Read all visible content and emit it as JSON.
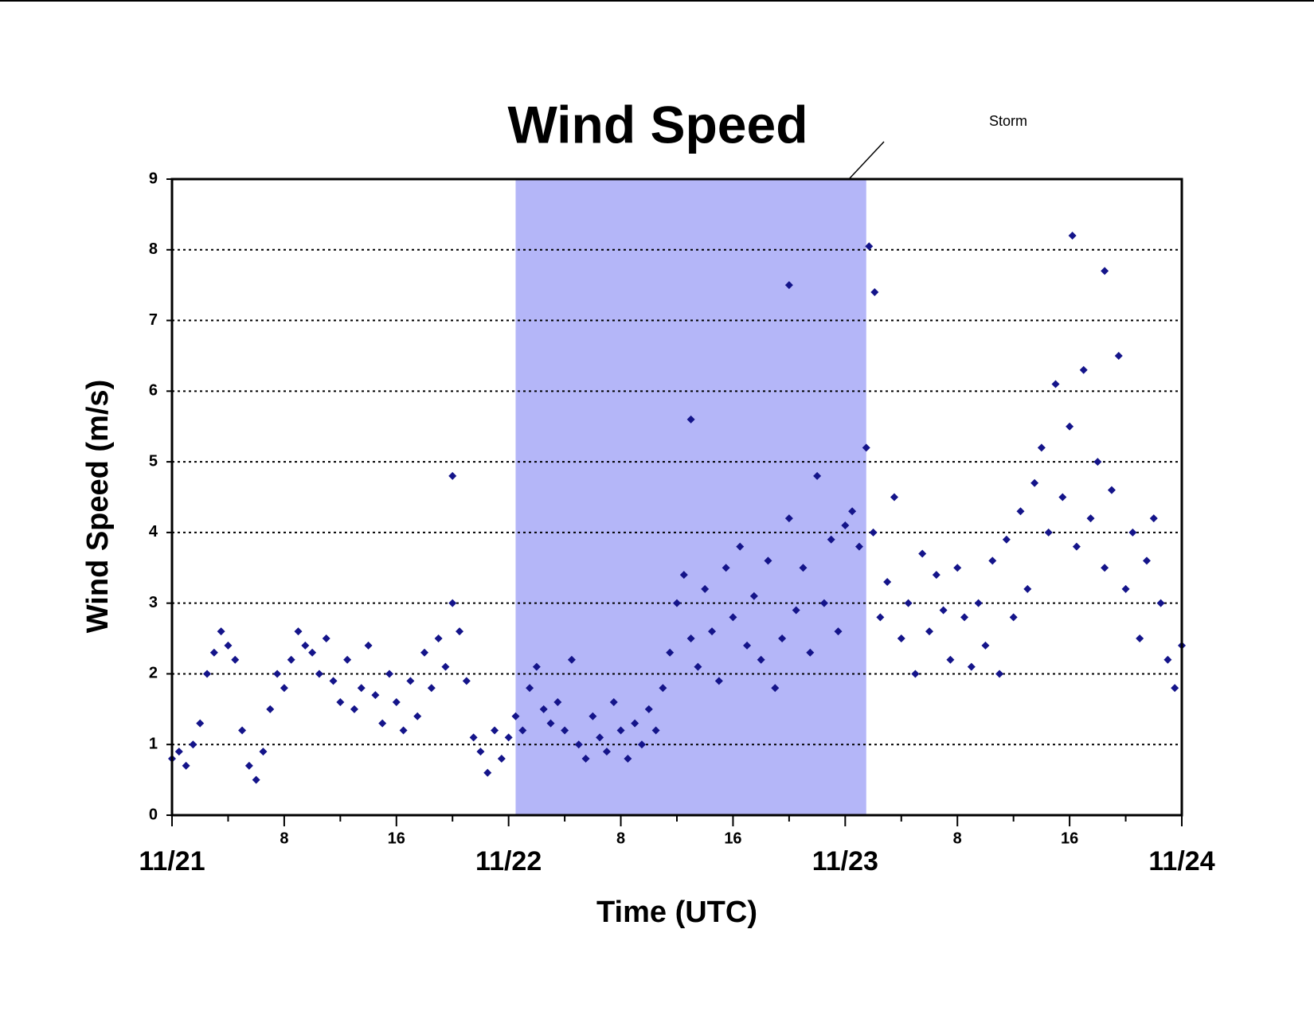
{
  "chart_data": {
    "type": "scatter",
    "title": "Wind Speed",
    "xlabel": "Time (UTC)",
    "ylabel": "Wind Speed (m/s)",
    "color": "#14148a",
    "grid": true,
    "xlim": [
      0,
      72
    ],
    "ylim": [
      0,
      9
    ],
    "yticks": [
      0,
      1,
      2,
      3,
      4,
      5,
      6,
      7,
      8,
      9
    ],
    "xticks": [
      {
        "value": 0,
        "label": "11/21"
      },
      8,
      16,
      {
        "value": 24,
        "label": "11/22"
      },
      {
        "value": 32,
        "label": "8"
      },
      {
        "value": 40,
        "label": "16"
      },
      {
        "value": 48,
        "label": "11/23"
      },
      {
        "value": 56,
        "label": "8"
      },
      {
        "value": 64,
        "label": "16"
      },
      {
        "value": 72,
        "label": "11/24"
      }
    ],
    "xminorticks": [
      4,
      12,
      20,
      28,
      36,
      44,
      52,
      60,
      68
    ],
    "shade": {
      "label": "Storm",
      "xlim": [
        24.5,
        49.5
      ],
      "color": "#b4b6f8"
    },
    "x": [
      0,
      0.5,
      1,
      1.5,
      2,
      2.5,
      3,
      3.5,
      4,
      4.5,
      5,
      5.5,
      6,
      6.5,
      7,
      7.5,
      8,
      8.5,
      9,
      9.5,
      10,
      10.5,
      11,
      11.5,
      12,
      12.5,
      13,
      13.5,
      14,
      14.5,
      15,
      15.5,
      16,
      16.5,
      17,
      17.5,
      18,
      18.5,
      19,
      19.5,
      20,
      20.5,
      21,
      21.5,
      22,
      22.5,
      23,
      23.5,
      24,
      24.5,
      25,
      25.5,
      26,
      26.5,
      27,
      27.5,
      28,
      28.5,
      29,
      29.5,
      30,
      30.5,
      31,
      31.5,
      32,
      32.5,
      33,
      33.5,
      34,
      34.5,
      35,
      35.5,
      36,
      36.5,
      37,
      37.5,
      38,
      38.5,
      39,
      39.5,
      40,
      40.5,
      41,
      41.5,
      42,
      42.5,
      43,
      43.5,
      44,
      44.5,
      45,
      45.5,
      46,
      46.5,
      47,
      47.5,
      48,
      48.5,
      49,
      49.5,
      50,
      50.5,
      51,
      51.5,
      52,
      52.5,
      53,
      53.5,
      54,
      54.5,
      55,
      55.5,
      56,
      56.5,
      57,
      57.5,
      58,
      58.5,
      59,
      59.5,
      60,
      60.5,
      61,
      61.5,
      62,
      62.5,
      63,
      63.5,
      64,
      64.5,
      65,
      65.5,
      66,
      66.5,
      67,
      67.5,
      68,
      68.5,
      69,
      69.5,
      70,
      70.5,
      71,
      71.5,
      72,
      20,
      44,
      49.7,
      64.2,
      66.5,
      50.1,
      37
    ],
    "values": [
      0.8,
      0.9,
      0.7,
      1.0,
      1.3,
      2.0,
      2.3,
      2.6,
      2.4,
      2.2,
      1.2,
      0.7,
      0.5,
      0.9,
      1.5,
      2.0,
      1.8,
      2.2,
      2.6,
      2.4,
      2.3,
      2.0,
      2.5,
      1.9,
      1.6,
      2.2,
      1.5,
      1.8,
      2.4,
      1.7,
      1.3,
      2.0,
      1.6,
      1.2,
      1.9,
      1.4,
      2.3,
      1.8,
      2.5,
      2.1,
      3.0,
      2.6,
      1.9,
      1.1,
      0.9,
      0.6,
      1.2,
      0.8,
      1.1,
      1.4,
      1.2,
      1.8,
      2.1,
      1.5,
      1.3,
      1.6,
      1.2,
      2.2,
      1.0,
      0.8,
      1.4,
      1.1,
      0.9,
      1.6,
      1.2,
      0.8,
      1.3,
      1.0,
      1.5,
      1.2,
      1.8,
      2.3,
      3.0,
      3.4,
      2.5,
      2.1,
      3.2,
      2.6,
      1.9,
      3.5,
      2.8,
      3.8,
      2.4,
      3.1,
      2.2,
      3.6,
      1.8,
      2.5,
      4.2,
      2.9,
      3.5,
      2.3,
      4.8,
      3.0,
      3.9,
      2.6,
      4.1,
      4.3,
      3.8,
      5.2,
      4.0,
      2.8,
      3.3,
      4.5,
      2.5,
      3.0,
      2.0,
      3.7,
      2.6,
      3.4,
      2.9,
      2.2,
      3.5,
      2.8,
      2.1,
      3.0,
      2.4,
      3.6,
      2.0,
      3.9,
      2.8,
      4.3,
      3.2,
      4.7,
      5.2,
      4.0,
      6.1,
      4.5,
      5.5,
      3.8,
      6.3,
      4.2,
      5.0,
      3.5,
      4.6,
      6.5,
      3.2,
      4.0,
      2.5,
      3.6,
      4.2,
      3.0,
      2.2,
      1.8,
      2.4,
      4.8,
      7.5,
      8.05,
      8.2,
      7.7,
      7.4,
      5.6
    ]
  }
}
